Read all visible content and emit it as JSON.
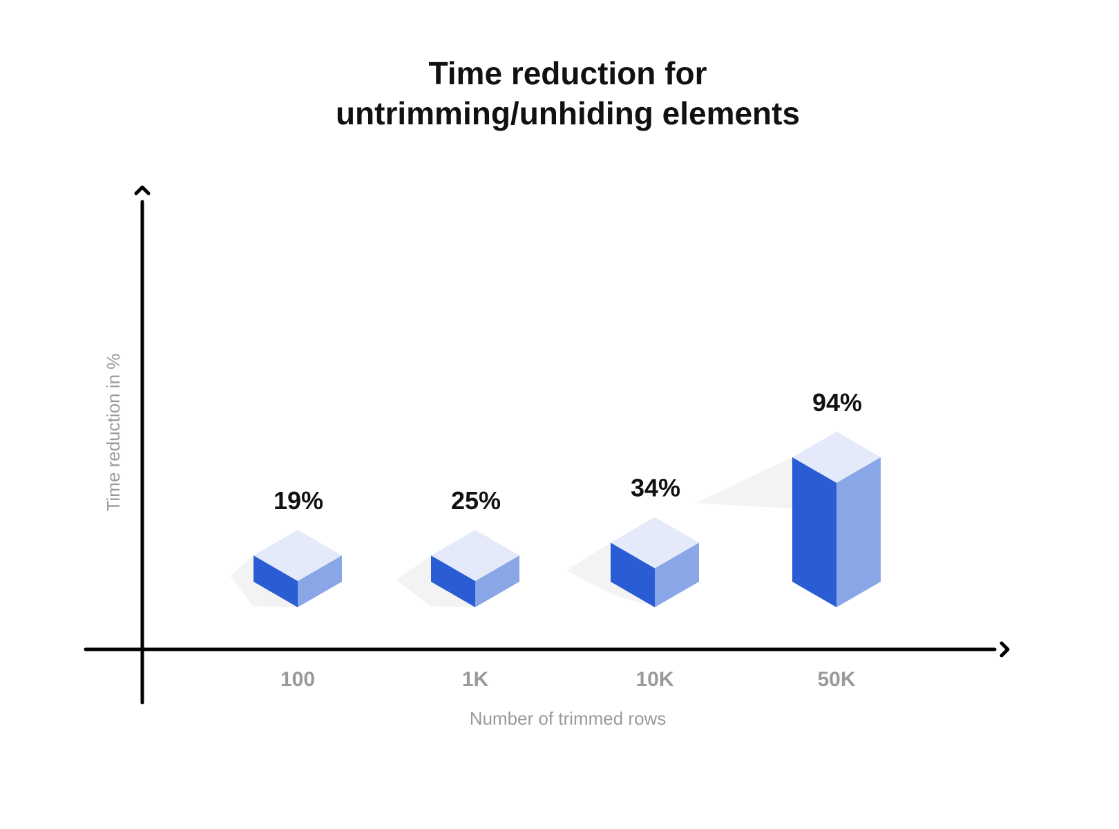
{
  "chart_data": {
    "type": "bar",
    "title": [
      "Time reduction for",
      "untrimming/unhiding elements"
    ],
    "xlabel": "Number of trimmed rows",
    "ylabel": "Time reduction in %",
    "categories": [
      "100",
      "1K",
      "10K",
      "50K"
    ],
    "values": [
      19,
      25,
      34,
      94
    ],
    "value_labels": [
      "19%",
      "25%",
      "34%",
      "94%"
    ],
    "grid": false,
    "legend": "none",
    "colors": {
      "front": "#2a5cd3",
      "side": "#89a6e6",
      "top": "#e4eaf9",
      "shadow": "#f3f3f3",
      "axis": "#000000",
      "muted_text": "#9a9a9a"
    }
  }
}
